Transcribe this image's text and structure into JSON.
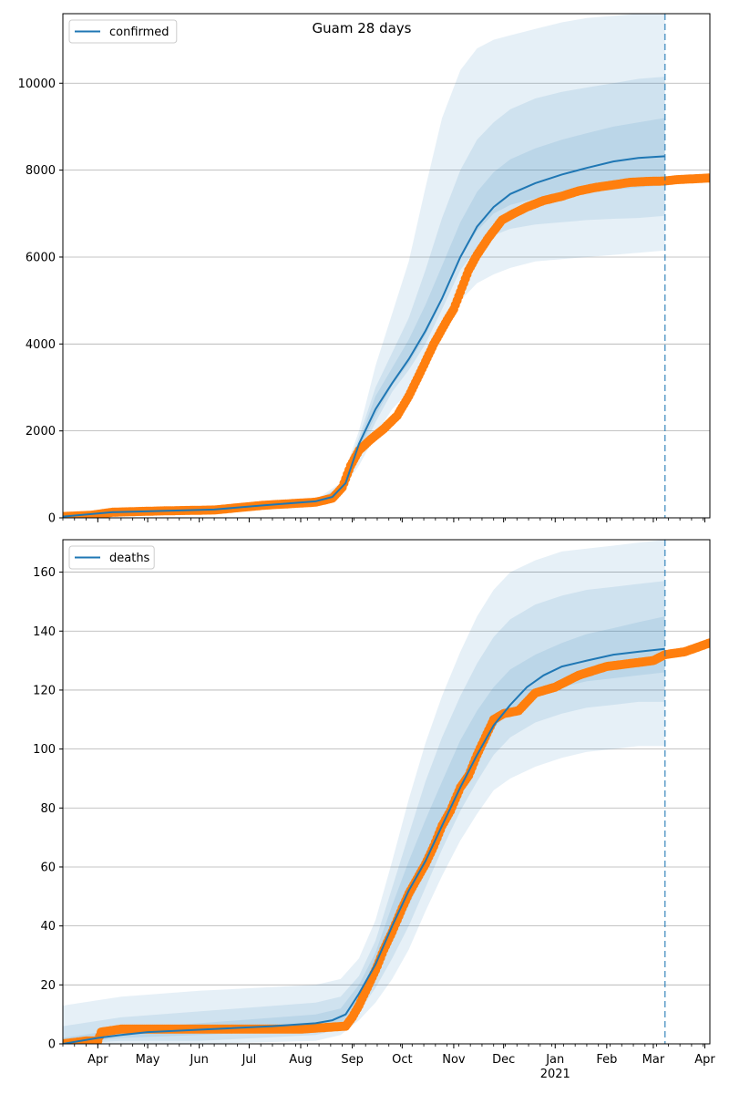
{
  "chart_data": [
    {
      "type": "line",
      "title": "Guam 28 days",
      "x_start": "2020-03-11",
      "xlim": [
        "2020-03-11",
        "2021-04-04"
      ],
      "forecast_line": "2021-03-08",
      "ylim": [
        0,
        11600
      ],
      "yticks": [
        0,
        2000,
        4000,
        6000,
        8000,
        10000
      ],
      "grid": "y",
      "legend": {
        "position": "top-left",
        "label": "confirmed"
      },
      "series": [
        {
          "name": "confirmed",
          "kind": "model",
          "color": "#1f77b4",
          "x": [
            "2020-03-11",
            "2020-04-10",
            "2020-05-10",
            "2020-06-10",
            "2020-07-10",
            "2020-08-10",
            "2020-08-20",
            "2020-08-28",
            "2020-09-05",
            "2020-09-15",
            "2020-09-25",
            "2020-10-05",
            "2020-10-15",
            "2020-10-25",
            "2020-11-05",
            "2020-11-15",
            "2020-11-25",
            "2020-12-05",
            "2020-12-20",
            "2021-01-05",
            "2021-01-20",
            "2021-02-05",
            "2021-02-20",
            "2021-03-08"
          ],
          "y": [
            30,
            130,
            160,
            190,
            290,
            380,
            480,
            800,
            1700,
            2500,
            3100,
            3650,
            4300,
            5050,
            6000,
            6700,
            7150,
            7450,
            7700,
            7900,
            8050,
            8200,
            8280,
            8320
          ]
        },
        {
          "name": "",
          "kind": "observed",
          "color": "#ff7f0e",
          "x": [
            "2020-03-11",
            "2020-03-28",
            "2020-04-10",
            "2020-05-10",
            "2020-06-10",
            "2020-07-10",
            "2020-08-10",
            "2020-08-20",
            "2020-08-26",
            "2020-08-31",
            "2020-09-05",
            "2020-09-12",
            "2020-09-20",
            "2020-09-28",
            "2020-10-05",
            "2020-10-12",
            "2020-10-20",
            "2020-10-28",
            "2020-11-01",
            "2020-11-05",
            "2020-11-10",
            "2020-11-15",
            "2020-11-22",
            "2020-11-30",
            "2020-12-07",
            "2020-12-15",
            "2020-12-25",
            "2021-01-05",
            "2021-01-15",
            "2021-01-25",
            "2021-02-05",
            "2021-02-15",
            "2021-02-25",
            "2021-03-08",
            "2021-03-15",
            "2021-03-25",
            "2021-04-04"
          ],
          "y": [
            30,
            60,
            130,
            160,
            180,
            290,
            360,
            450,
            700,
            1200,
            1550,
            1800,
            2050,
            2350,
            2800,
            3350,
            4000,
            4550,
            4800,
            5200,
            5700,
            6050,
            6450,
            6850,
            7000,
            7150,
            7300,
            7400,
            7520,
            7600,
            7660,
            7720,
            7740,
            7750,
            7780,
            7800,
            7820
          ]
        }
      ],
      "bands": [
        {
          "opacity": 0.11,
          "x": [
            "2020-03-11",
            "2020-08-10",
            "2020-08-25",
            "2020-09-05",
            "2020-09-15",
            "2020-09-25",
            "2020-10-05",
            "2020-10-15",
            "2020-10-25",
            "2020-11-05",
            "2020-11-15",
            "2020-11-25",
            "2020-12-05",
            "2020-12-20",
            "2021-01-05",
            "2021-01-20",
            "2021-02-05",
            "2021-02-20",
            "2021-03-08"
          ],
          "upper": [
            50,
            420,
            800,
            2000,
            3500,
            4700,
            5900,
            7600,
            9200,
            10300,
            10800,
            11000,
            11100,
            11250,
            11400,
            11500,
            11550,
            11600,
            11600
          ],
          "lower": [
            20,
            340,
            600,
            1200,
            1900,
            2500,
            2900,
            3500,
            4200,
            5000,
            5400,
            5600,
            5750,
            5900,
            5950,
            6000,
            6050,
            6100,
            6150
          ]
        },
        {
          "opacity": 0.11,
          "x": [
            "2020-03-11",
            "2020-08-10",
            "2020-08-25",
            "2020-09-05",
            "2020-09-15",
            "2020-09-25",
            "2020-10-05",
            "2020-10-15",
            "2020-10-25",
            "2020-11-05",
            "2020-11-15",
            "2020-11-25",
            "2020-12-05",
            "2020-12-20",
            "2021-01-05",
            "2021-01-20",
            "2021-02-05",
            "2021-02-20",
            "2021-03-08"
          ],
          "upper": [
            40,
            400,
            720,
            1850,
            3000,
            3800,
            4600,
            5700,
            6900,
            8000,
            8700,
            9100,
            9400,
            9650,
            9800,
            9900,
            10000,
            10100,
            10150
          ],
          "lower": [
            25,
            360,
            650,
            1400,
            2200,
            2900,
            3400,
            4000,
            4800,
            5700,
            6200,
            6500,
            6650,
            6750,
            6800,
            6850,
            6880,
            6900,
            6950
          ]
        },
        {
          "opacity": 0.11,
          "x": [
            "2020-03-11",
            "2020-08-10",
            "2020-08-25",
            "2020-09-05",
            "2020-09-15",
            "2020-09-25",
            "2020-10-05",
            "2020-10-15",
            "2020-10-25",
            "2020-11-05",
            "2020-11-15",
            "2020-11-25",
            "2020-12-05",
            "2020-12-20",
            "2021-01-05",
            "2021-01-20",
            "2021-02-05",
            "2021-02-20",
            "2021-03-08"
          ],
          "upper": [
            35,
            390,
            700,
            1750,
            2800,
            3450,
            4100,
            4900,
            5800,
            6800,
            7500,
            7950,
            8250,
            8500,
            8700,
            8850,
            9000,
            9100,
            9200
          ],
          "lower": [
            28,
            370,
            680,
            1550,
            2350,
            3050,
            3550,
            4200,
            5000,
            6000,
            6600,
            7000,
            7200,
            7350,
            7450,
            7500,
            7550,
            7600,
            7650
          ]
        }
      ]
    },
    {
      "type": "line",
      "title": "",
      "x_start": "2020-03-11",
      "xlim": [
        "2020-03-11",
        "2021-04-04"
      ],
      "forecast_line": "2021-03-08",
      "ylim": [
        0,
        171
      ],
      "yticks": [
        0,
        20,
        40,
        60,
        80,
        100,
        120,
        140,
        160
      ],
      "grid": "y",
      "legend": {
        "position": "top-left",
        "label": "deaths"
      },
      "xticks": [
        {
          "date": "2020-04-01",
          "label": "Apr"
        },
        {
          "date": "2020-05-01",
          "label": "May"
        },
        {
          "date": "2020-06-01",
          "label": "Jun"
        },
        {
          "date": "2020-07-01",
          "label": "Jul"
        },
        {
          "date": "2020-08-01",
          "label": "Aug"
        },
        {
          "date": "2020-09-01",
          "label": "Sep"
        },
        {
          "date": "2020-10-01",
          "label": "Oct"
        },
        {
          "date": "2020-11-01",
          "label": "Nov"
        },
        {
          "date": "2020-12-01",
          "label": "Dec"
        },
        {
          "date": "2021-01-01",
          "label": "Jan"
        },
        {
          "date": "2021-02-01",
          "label": "Feb"
        },
        {
          "date": "2021-03-01",
          "label": "Mar"
        },
        {
          "date": "2021-04-01",
          "label": "Apr"
        }
      ],
      "year_label": {
        "date": "2021-01-01",
        "label": "2021"
      },
      "series": [
        {
          "name": "deaths",
          "kind": "model",
          "color": "#1f77b4",
          "x": [
            "2020-03-11",
            "2020-04-01",
            "2020-04-15",
            "2020-05-01",
            "2020-07-15",
            "2020-08-10",
            "2020-08-20",
            "2020-08-28",
            "2020-09-05",
            "2020-09-15",
            "2020-09-25",
            "2020-10-05",
            "2020-10-15",
            "2020-10-25",
            "2020-11-05",
            "2020-11-15",
            "2020-11-25",
            "2020-12-05",
            "2020-12-15",
            "2020-12-25",
            "2021-01-05",
            "2021-01-20",
            "2021-02-05",
            "2021-02-20",
            "2021-03-08"
          ],
          "y": [
            0,
            2,
            3,
            4,
            6,
            7,
            8,
            10,
            17,
            27,
            40,
            52,
            62,
            74,
            87,
            98,
            108,
            115,
            121,
            125,
            128,
            130,
            132,
            133,
            134
          ]
        },
        {
          "name": "",
          "kind": "observed",
          "color": "#ff7f0e",
          "x": [
            "2020-03-11",
            "2020-03-25",
            "2020-04-01",
            "2020-04-03",
            "2020-04-15",
            "2020-06-01",
            "2020-07-01",
            "2020-08-01",
            "2020-08-28",
            "2020-09-01",
            "2020-09-05",
            "2020-09-10",
            "2020-09-15",
            "2020-09-20",
            "2020-09-25",
            "2020-10-01",
            "2020-10-05",
            "2020-10-10",
            "2020-10-15",
            "2020-10-20",
            "2020-10-25",
            "2020-10-30",
            "2020-11-05",
            "2020-11-10",
            "2020-11-15",
            "2020-11-20",
            "2020-11-25",
            "2020-12-01",
            "2020-12-10",
            "2020-12-20",
            "2021-01-01",
            "2021-01-15",
            "2021-02-01",
            "2021-02-15",
            "2021-03-01",
            "2021-03-08",
            "2021-03-20",
            "2021-04-04"
          ],
          "y": [
            0,
            1,
            1,
            4,
            5,
            5,
            5,
            5,
            6,
            9,
            13,
            19,
            25,
            32,
            38,
            46,
            51,
            56,
            61,
            67,
            74,
            79,
            87,
            91,
            98,
            104,
            110,
            112,
            113,
            119,
            121,
            125,
            128,
            129,
            130,
            132,
            133,
            136
          ]
        }
      ],
      "bands": [
        {
          "opacity": 0.11,
          "x": [
            "2020-03-11",
            "2020-04-15",
            "2020-06-01",
            "2020-08-10",
            "2020-08-25",
            "2020-09-05",
            "2020-09-15",
            "2020-09-25",
            "2020-10-05",
            "2020-10-15",
            "2020-10-25",
            "2020-11-05",
            "2020-11-15",
            "2020-11-25",
            "2020-12-05",
            "2020-12-20",
            "2021-01-05",
            "2021-01-20",
            "2021-02-05",
            "2021-02-20",
            "2021-03-08"
          ],
          "upper": [
            13,
            16,
            18,
            20,
            22,
            29,
            42,
            62,
            83,
            102,
            118,
            133,
            145,
            154,
            160,
            164,
            167,
            168,
            169,
            170,
            171
          ],
          "lower": [
            0,
            0,
            0,
            1,
            3,
            8,
            14,
            22,
            32,
            45,
            57,
            69,
            78,
            86,
            90,
            94,
            97,
            99,
            100,
            101,
            101
          ]
        },
        {
          "opacity": 0.11,
          "x": [
            "2020-03-11",
            "2020-04-15",
            "2020-06-01",
            "2020-08-10",
            "2020-08-25",
            "2020-09-05",
            "2020-09-15",
            "2020-09-25",
            "2020-10-05",
            "2020-10-15",
            "2020-10-25",
            "2020-11-05",
            "2020-11-15",
            "2020-11-25",
            "2020-12-05",
            "2020-12-20",
            "2021-01-05",
            "2021-01-20",
            "2021-02-05",
            "2021-02-20",
            "2021-03-08"
          ],
          "upper": [
            6,
            9,
            11,
            14,
            16,
            23,
            35,
            53,
            71,
            89,
            104,
            118,
            129,
            138,
            144,
            149,
            152,
            154,
            155,
            156,
            157
          ],
          "lower": [
            0,
            1,
            1,
            3,
            5,
            11,
            19,
            29,
            40,
            53,
            66,
            79,
            89,
            98,
            104,
            109,
            112,
            114,
            115,
            116,
            116
          ]
        },
        {
          "opacity": 0.11,
          "x": [
            "2020-03-11",
            "2020-04-15",
            "2020-06-01",
            "2020-08-10",
            "2020-08-25",
            "2020-09-05",
            "2020-09-15",
            "2020-09-25",
            "2020-10-05",
            "2020-10-15",
            "2020-10-25",
            "2020-11-05",
            "2020-11-15",
            "2020-11-25",
            "2020-12-05",
            "2020-12-20",
            "2021-01-05",
            "2021-01-20",
            "2021-02-05",
            "2021-02-20",
            "2021-03-08"
          ],
          "upper": [
            2,
            5,
            7,
            10,
            12,
            20,
            31,
            47,
            62,
            76,
            89,
            103,
            113,
            121,
            127,
            132,
            136,
            139,
            141,
            143,
            145
          ],
          "lower": [
            0,
            2,
            3,
            5,
            7,
            14,
            23,
            35,
            47,
            59,
            72,
            85,
            97,
            107,
            113,
            118,
            121,
            123,
            124,
            125,
            126
          ]
        }
      ]
    }
  ]
}
